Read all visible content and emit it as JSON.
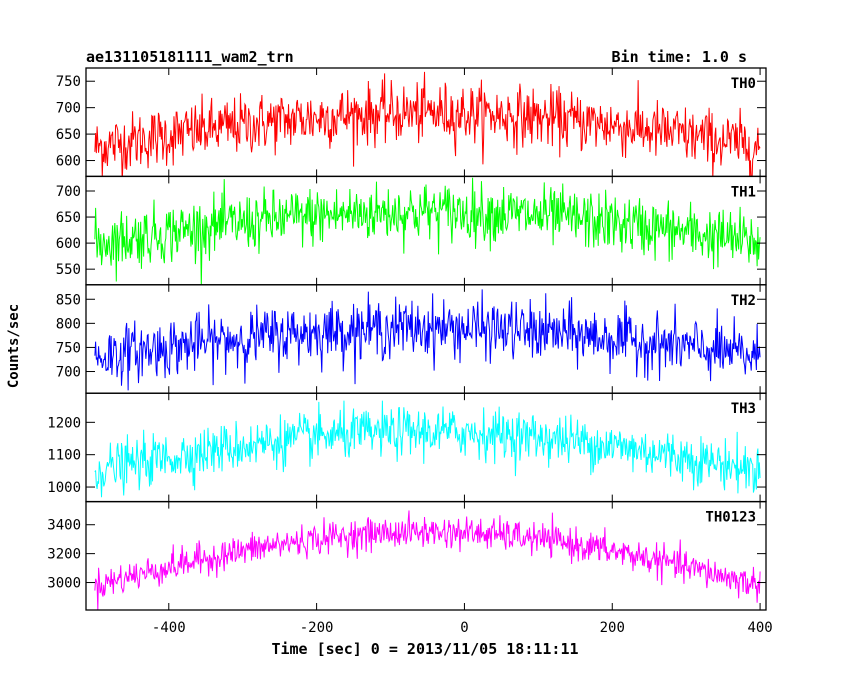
{
  "chart_data": {
    "type": "line",
    "title_left": "ae131105181111_wam2_trn",
    "title_right": "Bin time: 1.0 s",
    "xlabel": "Time [sec] 0 = 2013/11/05 18:11:11",
    "ylabel": "Counts/sec",
    "xlim": [
      -512,
      408
    ],
    "x_ticks": [
      -400,
      -200,
      0,
      200,
      400
    ],
    "x_start": -500,
    "x_end": 400,
    "panels": [
      {
        "name": "TH0",
        "color": "#ff0000",
        "ylim": [
          570,
          775
        ],
        "y_ticks": [
          600,
          650,
          700,
          750
        ],
        "base_edge": 625,
        "base_mid": 690,
        "noise": 28
      },
      {
        "name": "TH1",
        "color": "#00ff00",
        "ylim": [
          520,
          728
        ],
        "y_ticks": [
          550,
          600,
          650,
          700
        ],
        "base_edge": 600,
        "base_mid": 660,
        "noise": 28
      },
      {
        "name": "TH2",
        "color": "#0000ff",
        "ylim": [
          655,
          880
        ],
        "y_ticks": [
          700,
          750,
          800,
          850
        ],
        "base_edge": 730,
        "base_mid": 790,
        "noise": 30
      },
      {
        "name": "TH3",
        "color": "#00ffff",
        "ylim": [
          955,
          1290
        ],
        "y_ticks": [
          1000,
          1100,
          1200
        ],
        "base_edge": 1050,
        "base_mid": 1170,
        "noise": 38
      },
      {
        "name": "TH0123",
        "color": "#ff00ff",
        "ylim": [
          2810,
          3560
        ],
        "y_ticks": [
          3000,
          3200,
          3400
        ],
        "base_edge": 2980,
        "base_mid": 3350,
        "noise": 55
      }
    ]
  }
}
